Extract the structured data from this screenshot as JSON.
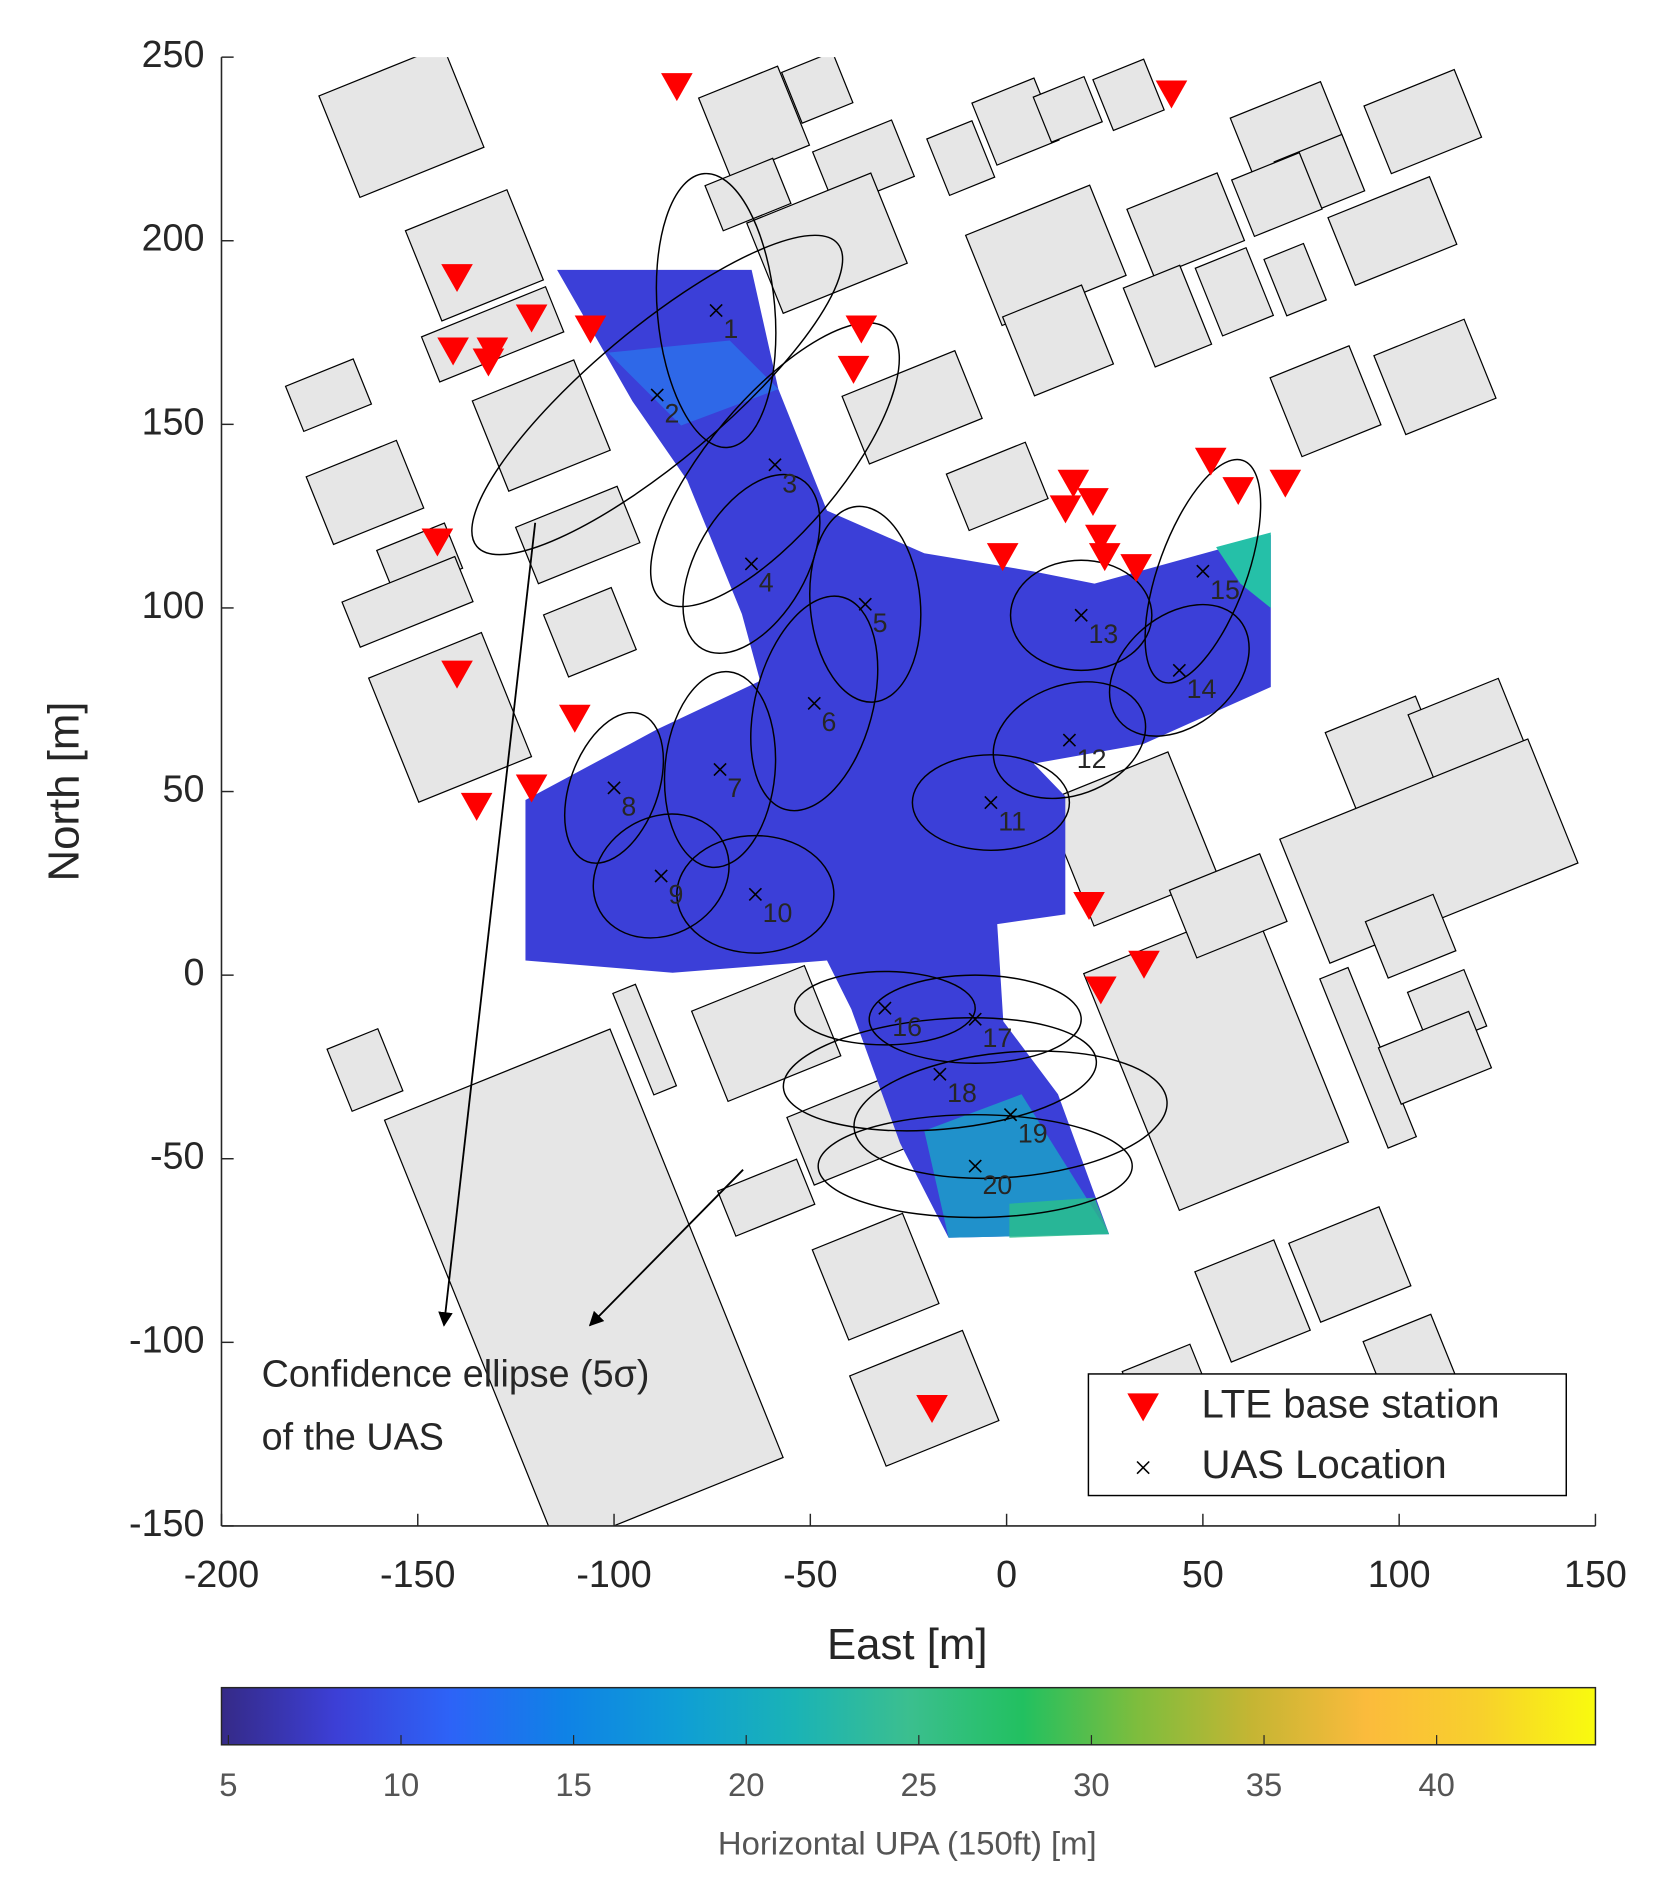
{
  "chart_data": {
    "type": "scatter",
    "xlabel": "East [m]",
    "ylabel": "North [m]",
    "xlim": [
      -200,
      150
    ],
    "ylim": [
      -150,
      250
    ],
    "xticks": [
      -200,
      -150,
      -100,
      -50,
      0,
      50,
      100,
      150
    ],
    "yticks": [
      -150,
      -100,
      -50,
      0,
      50,
      100,
      150,
      200,
      250
    ],
    "legend": "lower right",
    "annotation": [
      "Confidence ellipse (5σ)",
      "of the UAS"
    ],
    "series": [
      {
        "name": "LTE base station",
        "color": "#ff0000",
        "marker": "triangle",
        "x": [
          -84,
          42,
          -140,
          -141,
          -131,
          -132,
          -121,
          -106,
          -37,
          -39,
          -145,
          -140,
          -135,
          -110,
          -121,
          -1,
          17,
          22,
          15,
          24,
          25,
          33,
          52,
          59,
          71,
          21,
          24,
          35,
          -19
        ],
        "y": [
          242,
          240,
          190,
          170,
          170,
          167,
          179,
          176,
          176,
          165,
          118,
          82,
          46,
          70,
          51,
          114,
          134,
          129,
          127,
          119,
          114,
          111,
          140,
          132,
          134,
          19,
          -4,
          3,
          -118
        ]
      },
      {
        "name": "UAS Location",
        "color": "#000000",
        "marker": "x",
        "x": [
          -74,
          -89,
          -59,
          -65,
          -36,
          -49,
          -73,
          -100,
          -88,
          -64,
          -4,
          16,
          19,
          44,
          50,
          -31,
          -8,
          -17,
          1,
          -8
        ],
        "y": [
          181,
          158,
          139,
          112,
          101,
          74,
          56,
          51,
          27,
          22,
          47,
          64,
          98,
          83,
          110,
          -9,
          -12,
          -27,
          -38,
          -52
        ],
        "labels": [
          "1",
          "2",
          "3",
          "4",
          "5",
          "6",
          "7",
          "8",
          "9",
          "10",
          "11",
          "12",
          "13",
          "14",
          "15",
          "16",
          "17",
          "18",
          "19",
          "20"
        ],
        "ellipses": [
          {
            "a": 35,
            "b": 16,
            "angle": 95
          },
          {
            "a": 60,
            "b": 18,
            "angle": 40
          },
          {
            "a": 45,
            "b": 18,
            "angle": 50
          },
          {
            "a": 25,
            "b": 15,
            "angle": 60
          },
          {
            "a": 25,
            "b": 15,
            "angle": 95
          },
          {
            "a": 28,
            "b": 16,
            "angle": 75
          },
          {
            "a": 25,
            "b": 15,
            "angle": 85
          },
          {
            "a": 20,
            "b": 12,
            "angle": 70
          },
          {
            "a": 18,
            "b": 16,
            "angle": 30
          },
          {
            "a": 20,
            "b": 16,
            "angle": 0
          },
          {
            "a": 20,
            "b": 13,
            "angle": 0
          },
          {
            "a": 20,
            "b": 15,
            "angle": 20
          },
          {
            "a": 18,
            "b": 15,
            "angle": 0
          },
          {
            "a": 20,
            "b": 15,
            "angle": 40
          },
          {
            "a": 30,
            "b": 12,
            "angle": 70
          },
          {
            "a": 23,
            "b": 10,
            "angle": 0
          },
          {
            "a": 27,
            "b": 12,
            "angle": 0
          },
          {
            "a": 40,
            "b": 15,
            "angle": 5
          },
          {
            "a": 40,
            "b": 17,
            "angle": 5
          },
          {
            "a": 40,
            "b": 14,
            "angle": 0
          }
        ]
      }
    ],
    "colorbar": {
      "label": "Horizontal UPA (150ft) [m]",
      "colormap": "parula",
      "clim": [
        4.8,
        44.6
      ],
      "ticks": [
        5,
        10,
        15,
        20,
        25,
        30,
        35,
        40
      ]
    }
  }
}
